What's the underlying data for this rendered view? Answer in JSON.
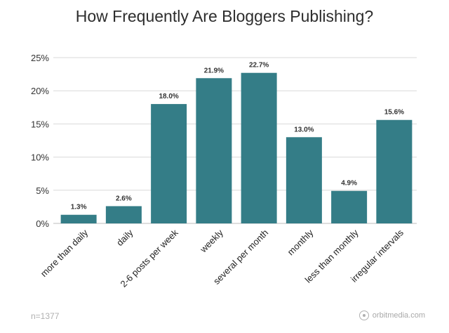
{
  "chart_data": {
    "type": "bar",
    "title": "How Frequently Are Bloggers Publishing?",
    "xlabel": "",
    "ylabel": "",
    "ylim": [
      0,
      25
    ],
    "yticks": [
      "0%",
      "5%",
      "10%",
      "15%",
      "20%",
      "25%"
    ],
    "ytick_values": [
      0,
      5,
      10,
      15,
      20,
      25
    ],
    "grid": true,
    "legend": "none",
    "bar_color": "#347d87",
    "categories": [
      "more than daily",
      "daily",
      "2-6 posts per week",
      "weekly",
      "several per month",
      "monthly",
      "less than monthly",
      "irregular intervals"
    ],
    "values": [
      1.3,
      2.6,
      18.0,
      21.9,
      22.7,
      13.0,
      4.9,
      15.6
    ],
    "data_labels": [
      "1.3%",
      "2.6%",
      "18.0%",
      "21.9%",
      "22.7%",
      "13.0%",
      "4.9%",
      "15.6%"
    ]
  },
  "footnote": "n=1377",
  "brand": "orbitmedia.com"
}
